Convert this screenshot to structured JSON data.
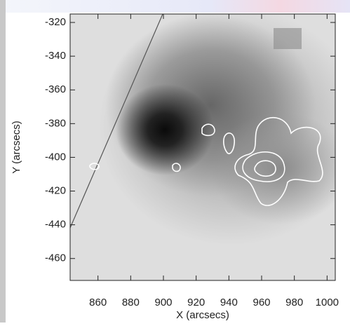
{
  "chart_data": {
    "type": "image",
    "x_label": "X (arcsecs)",
    "y_label": "Y (arcsecs)",
    "xlim": [
      843,
      1005
    ],
    "ylim": [
      -473,
      -315
    ],
    "xticks": [
      860,
      880,
      900,
      920,
      940,
      960,
      980,
      1000
    ],
    "yticks": [
      -320,
      -340,
      -360,
      -380,
      -400,
      -420,
      -440,
      -460
    ]
  }
}
